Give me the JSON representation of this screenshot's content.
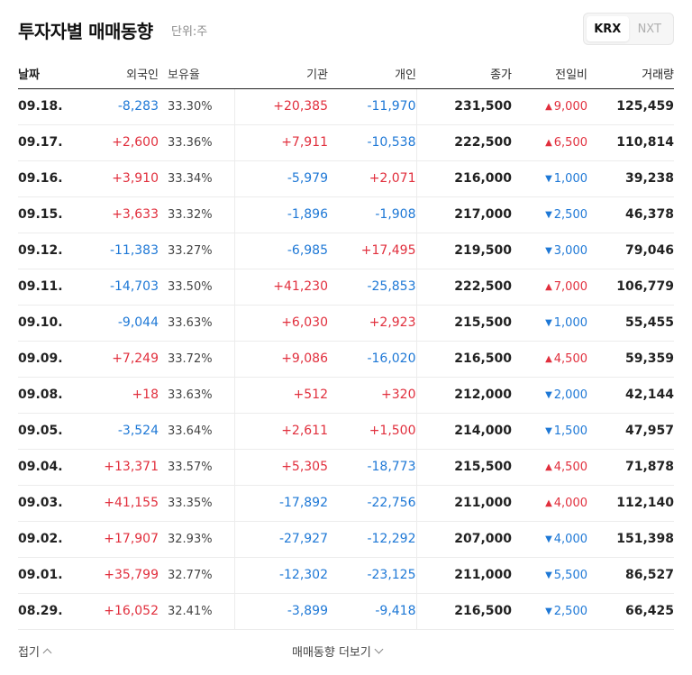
{
  "header": {
    "title": "투자자별 매매동향",
    "unit": "단위:주"
  },
  "market_toggle": {
    "options": [
      "KRX",
      "NXT"
    ],
    "active": "KRX"
  },
  "columns": [
    "날짜",
    "외국인",
    "보유율",
    "기관",
    "개인",
    "종가",
    "전일비",
    "거래량"
  ],
  "colors": {
    "up": "#e12f3d",
    "down": "#1e78d6"
  },
  "rows": [
    {
      "date": "09.18.",
      "foreign": "-8,283",
      "hold": "33.30%",
      "inst": "+20,385",
      "indiv": "-11,970",
      "close": "231,500",
      "chg_dir": "up",
      "chg": "9,000",
      "vol": "125,459"
    },
    {
      "date": "09.17.",
      "foreign": "+2,600",
      "hold": "33.36%",
      "inst": "+7,911",
      "indiv": "-10,538",
      "close": "222,500",
      "chg_dir": "up",
      "chg": "6,500",
      "vol": "110,814"
    },
    {
      "date": "09.16.",
      "foreign": "+3,910",
      "hold": "33.34%",
      "inst": "-5,979",
      "indiv": "+2,071",
      "close": "216,000",
      "chg_dir": "down",
      "chg": "1,000",
      "vol": "39,238"
    },
    {
      "date": "09.15.",
      "foreign": "+3,633",
      "hold": "33.32%",
      "inst": "-1,896",
      "indiv": "-1,908",
      "close": "217,000",
      "chg_dir": "down",
      "chg": "2,500",
      "vol": "46,378"
    },
    {
      "date": "09.12.",
      "foreign": "-11,383",
      "hold": "33.27%",
      "inst": "-6,985",
      "indiv": "+17,495",
      "close": "219,500",
      "chg_dir": "down",
      "chg": "3,000",
      "vol": "79,046"
    },
    {
      "date": "09.11.",
      "foreign": "-14,703",
      "hold": "33.50%",
      "inst": "+41,230",
      "indiv": "-25,853",
      "close": "222,500",
      "chg_dir": "up",
      "chg": "7,000",
      "vol": "106,779"
    },
    {
      "date": "09.10.",
      "foreign": "-9,044",
      "hold": "33.63%",
      "inst": "+6,030",
      "indiv": "+2,923",
      "close": "215,500",
      "chg_dir": "down",
      "chg": "1,000",
      "vol": "55,455"
    },
    {
      "date": "09.09.",
      "foreign": "+7,249",
      "hold": "33.72%",
      "inst": "+9,086",
      "indiv": "-16,020",
      "close": "216,500",
      "chg_dir": "up",
      "chg": "4,500",
      "vol": "59,359"
    },
    {
      "date": "09.08.",
      "foreign": "+18",
      "hold": "33.63%",
      "inst": "+512",
      "indiv": "+320",
      "close": "212,000",
      "chg_dir": "down",
      "chg": "2,000",
      "vol": "42,144"
    },
    {
      "date": "09.05.",
      "foreign": "-3,524",
      "hold": "33.64%",
      "inst": "+2,611",
      "indiv": "+1,500",
      "close": "214,000",
      "chg_dir": "down",
      "chg": "1,500",
      "vol": "47,957"
    },
    {
      "date": "09.04.",
      "foreign": "+13,371",
      "hold": "33.57%",
      "inst": "+5,305",
      "indiv": "-18,773",
      "close": "215,500",
      "chg_dir": "up",
      "chg": "4,500",
      "vol": "71,878"
    },
    {
      "date": "09.03.",
      "foreign": "+41,155",
      "hold": "33.35%",
      "inst": "-17,892",
      "indiv": "-22,756",
      "close": "211,000",
      "chg_dir": "up",
      "chg": "4,000",
      "vol": "112,140"
    },
    {
      "date": "09.02.",
      "foreign": "+17,907",
      "hold": "32.93%",
      "inst": "-27,927",
      "indiv": "-12,292",
      "close": "207,000",
      "chg_dir": "down",
      "chg": "4,000",
      "vol": "151,398"
    },
    {
      "date": "09.01.",
      "foreign": "+35,799",
      "hold": "32.77%",
      "inst": "-12,302",
      "indiv": "-23,125",
      "close": "211,000",
      "chg_dir": "down",
      "chg": "5,500",
      "vol": "86,527"
    },
    {
      "date": "08.29.",
      "foreign": "+16,052",
      "hold": "32.41%",
      "inst": "-3,899",
      "indiv": "-9,418",
      "close": "216,500",
      "chg_dir": "down",
      "chg": "2,500",
      "vol": "66,425"
    }
  ],
  "footer": {
    "collapse_label": "접기",
    "more_label": "매매동향 더보기"
  }
}
